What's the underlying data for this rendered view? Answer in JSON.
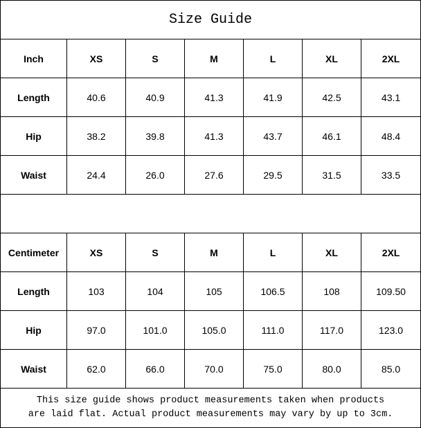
{
  "title": "Size Guide",
  "inch_table": {
    "unit_label": "Inch",
    "sizes": [
      "XS",
      "S",
      "M",
      "L",
      "XL",
      "2XL"
    ],
    "rows": [
      {
        "label": "Length",
        "values": [
          "40.6",
          "40.9",
          "41.3",
          "41.9",
          "42.5",
          "43.1"
        ]
      },
      {
        "label": "Hip",
        "values": [
          "38.2",
          "39.8",
          "41.3",
          "43.7",
          "46.1",
          "48.4"
        ]
      },
      {
        "label": "Waist",
        "values": [
          "24.4",
          "26.0",
          "27.6",
          "29.5",
          "31.5",
          "33.5"
        ]
      }
    ]
  },
  "cm_table": {
    "unit_label": "Centimeter",
    "sizes": [
      "XS",
      "S",
      "M",
      "L",
      "XL",
      "2XL"
    ],
    "rows": [
      {
        "label": "Length",
        "values": [
          "103",
          "104",
          "105",
          "106.5",
          "108",
          "109.50"
        ]
      },
      {
        "label": "Hip",
        "values": [
          "97.0",
          "101.0",
          "105.0",
          "111.0",
          "117.0",
          "123.0"
        ]
      },
      {
        "label": "Waist",
        "values": [
          "62.0",
          "66.0",
          "70.0",
          "75.0",
          "80.0",
          "85.0"
        ]
      }
    ]
  },
  "note": {
    "line1": "This size guide shows product measurements taken when products",
    "line2": "are laid flat. Actual product measurements may vary by up to 3cm."
  }
}
